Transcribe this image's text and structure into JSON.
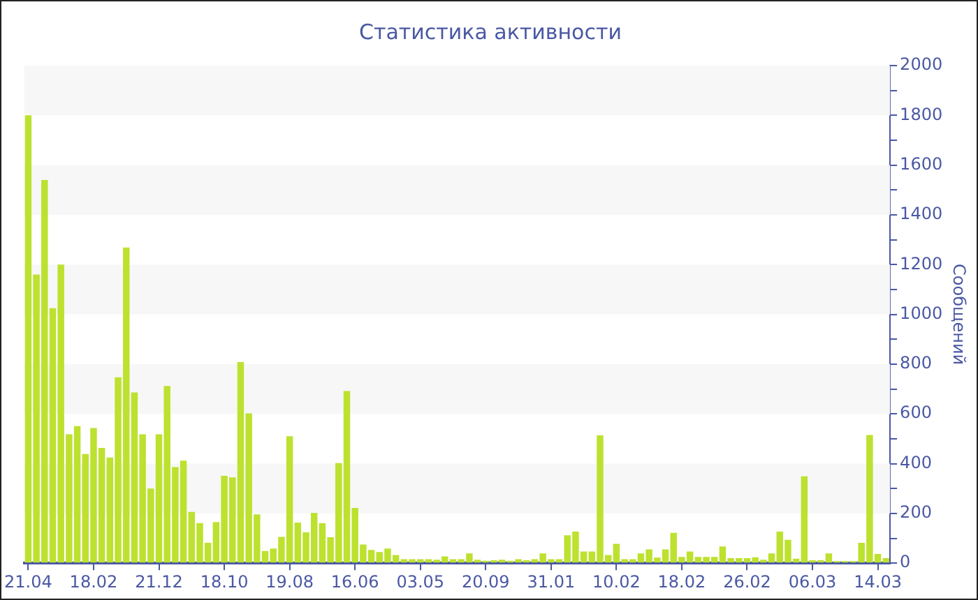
{
  "chart_data": {
    "type": "bar",
    "title": "Статистика активности",
    "y2label": "Сообщений",
    "categories": [
      "21.04",
      null,
      null,
      null,
      null,
      null,
      null,
      null,
      "18.02",
      null,
      null,
      null,
      null,
      null,
      null,
      null,
      "21.12",
      null,
      null,
      null,
      null,
      null,
      null,
      null,
      "18.10",
      null,
      null,
      null,
      null,
      null,
      null,
      null,
      "19.08",
      null,
      null,
      null,
      null,
      null,
      null,
      null,
      "16.06",
      null,
      null,
      null,
      null,
      null,
      null,
      null,
      "03.05",
      null,
      null,
      null,
      null,
      null,
      null,
      null,
      "20.09",
      null,
      null,
      null,
      null,
      null,
      null,
      null,
      "31.01",
      null,
      null,
      null,
      null,
      null,
      null,
      null,
      "10.02",
      null,
      null,
      null,
      null,
      null,
      null,
      null,
      "18.02",
      null,
      null,
      null,
      null,
      null,
      null,
      null,
      "26.02",
      null,
      null,
      null,
      null,
      null,
      null,
      null,
      "06.03",
      null,
      null,
      null,
      null,
      null,
      null,
      null,
      "14.03",
      null
    ],
    "series": [
      {
        "color": "#bde12f",
        "axis": "y2",
        "values": [
          1800,
          1160,
          1540,
          1025,
          1200,
          518,
          551,
          439,
          543,
          463,
          425,
          747,
          1269,
          686,
          518,
          300,
          518,
          712,
          386,
          412,
          206,
          161,
          82,
          165,
          351,
          345,
          808,
          602,
          196,
          49,
          59,
          106,
          510,
          163,
          124,
          202,
          161,
          104,
          402,
          692,
          222,
          75,
          53,
          45,
          59,
          33,
          16,
          16,
          16,
          16,
          14,
          27,
          16,
          16,
          39,
          14,
          10,
          12,
          14,
          10,
          16,
          12,
          16,
          39,
          16,
          16,
          112,
          127,
          47,
          47,
          514,
          33,
          78,
          16,
          16,
          39,
          55,
          22,
          55,
          122,
          25,
          47,
          25,
          25,
          25,
          67,
          20,
          20,
          20,
          24,
          14,
          39,
          127,
          94,
          18,
          349,
          12,
          12,
          39,
          8,
          8,
          8,
          82,
          515,
          37,
          20
        ]
      }
    ],
    "y2lim": [
      0,
      2000
    ],
    "y2ticks": [
      0,
      {
        "value": 100,
        "label": null
      },
      200,
      {
        "value": 300,
        "label": null
      },
      400,
      {
        "value": 500,
        "label": null
      },
      600,
      {
        "value": 700,
        "label": null
      },
      800,
      {
        "value": 900,
        "label": null
      },
      1000,
      {
        "value": 1100,
        "label": null
      },
      1200,
      {
        "value": 1300,
        "label": null
      },
      1400,
      {
        "value": 1500,
        "label": null
      },
      1600,
      {
        "value": 1700,
        "label": null
      },
      1800,
      {
        "value": 1900,
        "label": null
      },
      2000
    ],
    "bands": [
      {
        "axis": "y2",
        "from": 200,
        "to": 400,
        "color": "#f7f7f7"
      },
      {
        "axis": "y2",
        "from": 600,
        "to": 800,
        "color": "#f7f7f7"
      },
      {
        "axis": "y2",
        "from": 1000,
        "to": 1200,
        "color": "#f7f7f7"
      },
      {
        "axis": "y2",
        "from": 1400,
        "to": 1600,
        "color": "#f7f7f7"
      },
      {
        "axis": "y2",
        "from": 1800,
        "to": 2000,
        "color": "#f7f7f7"
      }
    ]
  }
}
